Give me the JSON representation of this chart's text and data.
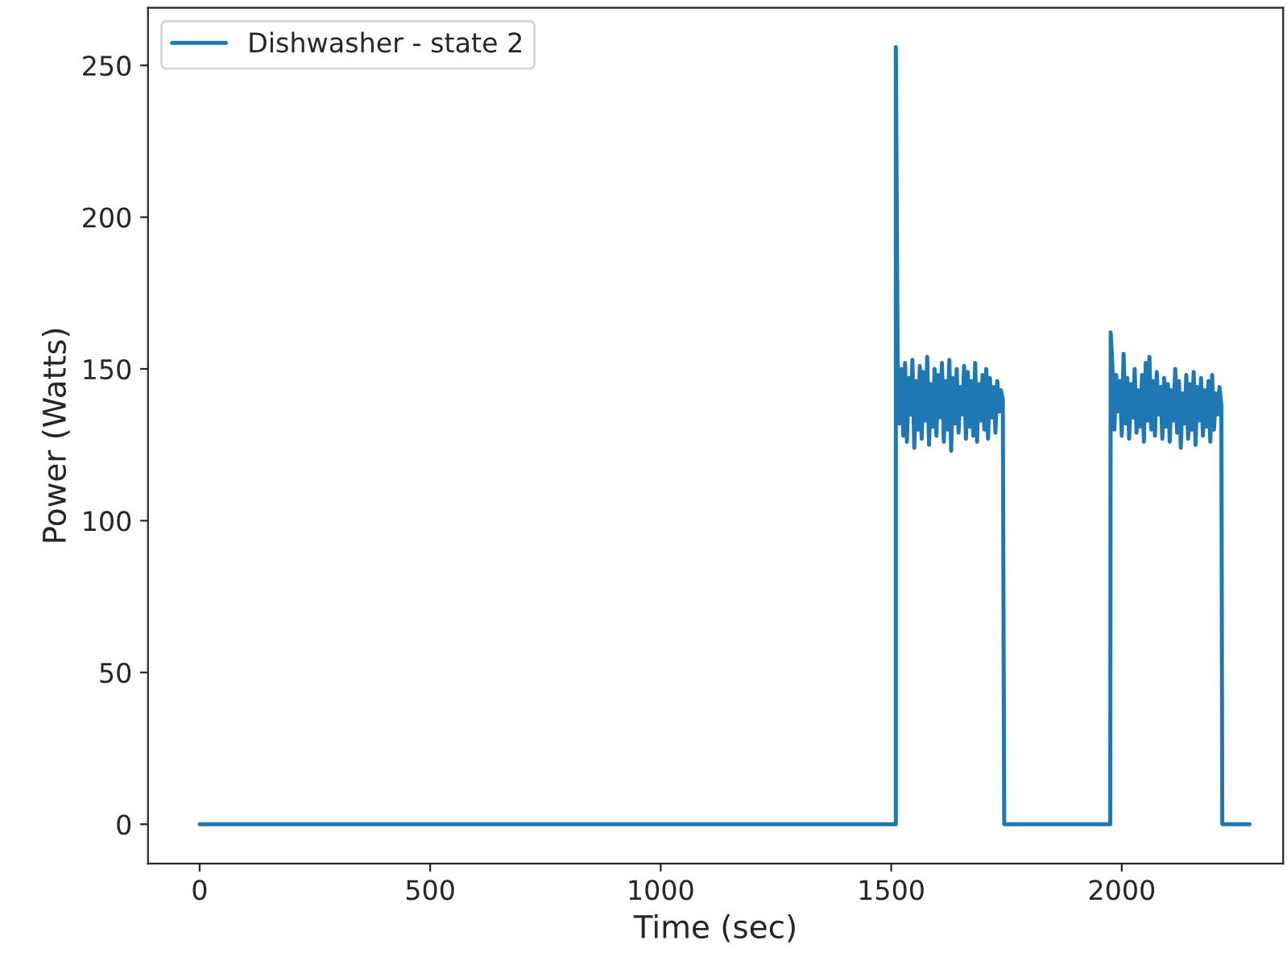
{
  "chart_data": {
    "type": "line",
    "xlabel": "Time (sec)",
    "ylabel": "Power (Watts)",
    "xlim": [
      -112,
      2350
    ],
    "ylim": [
      -13,
      269
    ],
    "xticks": [
      0,
      500,
      1000,
      1500,
      2000
    ],
    "yticks": [
      0,
      50,
      100,
      150,
      200,
      250
    ],
    "legend": "top left",
    "grid": false,
    "series": [
      {
        "name": "Dishwasher - state 2",
        "color": "#1f77b4",
        "x": [
          0,
          1510,
          1510,
          1514,
          1518,
          1522,
          1526,
          1530,
          1534,
          1538,
          1542,
          1546,
          1550,
          1554,
          1558,
          1562,
          1566,
          1570,
          1574,
          1578,
          1582,
          1586,
          1590,
          1594,
          1598,
          1602,
          1606,
          1610,
          1614,
          1618,
          1622,
          1626,
          1630,
          1634,
          1638,
          1642,
          1646,
          1650,
          1654,
          1658,
          1662,
          1666,
          1670,
          1674,
          1678,
          1682,
          1686,
          1690,
          1694,
          1698,
          1702,
          1706,
          1710,
          1714,
          1718,
          1722,
          1726,
          1730,
          1734,
          1738,
          1742,
          1745,
          1975,
          1976,
          1980,
          1984,
          1988,
          1992,
          1996,
          2000,
          2004,
          2008,
          2012,
          2016,
          2020,
          2024,
          2028,
          2032,
          2036,
          2040,
          2044,
          2048,
          2052,
          2056,
          2060,
          2064,
          2068,
          2072,
          2076,
          2080,
          2084,
          2088,
          2092,
          2096,
          2100,
          2104,
          2108,
          2112,
          2116,
          2120,
          2124,
          2128,
          2132,
          2136,
          2140,
          2144,
          2148,
          2152,
          2156,
          2160,
          2164,
          2168,
          2172,
          2176,
          2180,
          2184,
          2188,
          2192,
          2196,
          2200,
          2204,
          2208,
          2212,
          2216,
          2218,
          2277
        ],
        "values": [
          0,
          0,
          256,
          148,
          132,
          150,
          128,
          152,
          126,
          147,
          135,
          153,
          124,
          146,
          130,
          151,
          127,
          149,
          133,
          154,
          125,
          145,
          131,
          150,
          128,
          148,
          134,
          152,
          126,
          146,
          130,
          153,
          123,
          147,
          132,
          150,
          129,
          144,
          135,
          151,
          127,
          149,
          131,
          146,
          128,
          152,
          126,
          145,
          133,
          148,
          130,
          150,
          127,
          147,
          134,
          144,
          129,
          146,
          136,
          143,
          140,
          0,
          0,
          162,
          150,
          130,
          148,
          136,
          146,
          128,
          155,
          132,
          147,
          127,
          145,
          134,
          150,
          129,
          143,
          131,
          148,
          126,
          152,
          133,
          154,
          130,
          146,
          128,
          149,
          135,
          144,
          127,
          147,
          131,
          145,
          126,
          143,
          133,
          150,
          129,
          146,
          124,
          142,
          132,
          148,
          127,
          145,
          130,
          149,
          125,
          144,
          133,
          147,
          128,
          143,
          131,
          146,
          126,
          148,
          130,
          142,
          135,
          144,
          138,
          0,
          0
        ]
      }
    ]
  }
}
